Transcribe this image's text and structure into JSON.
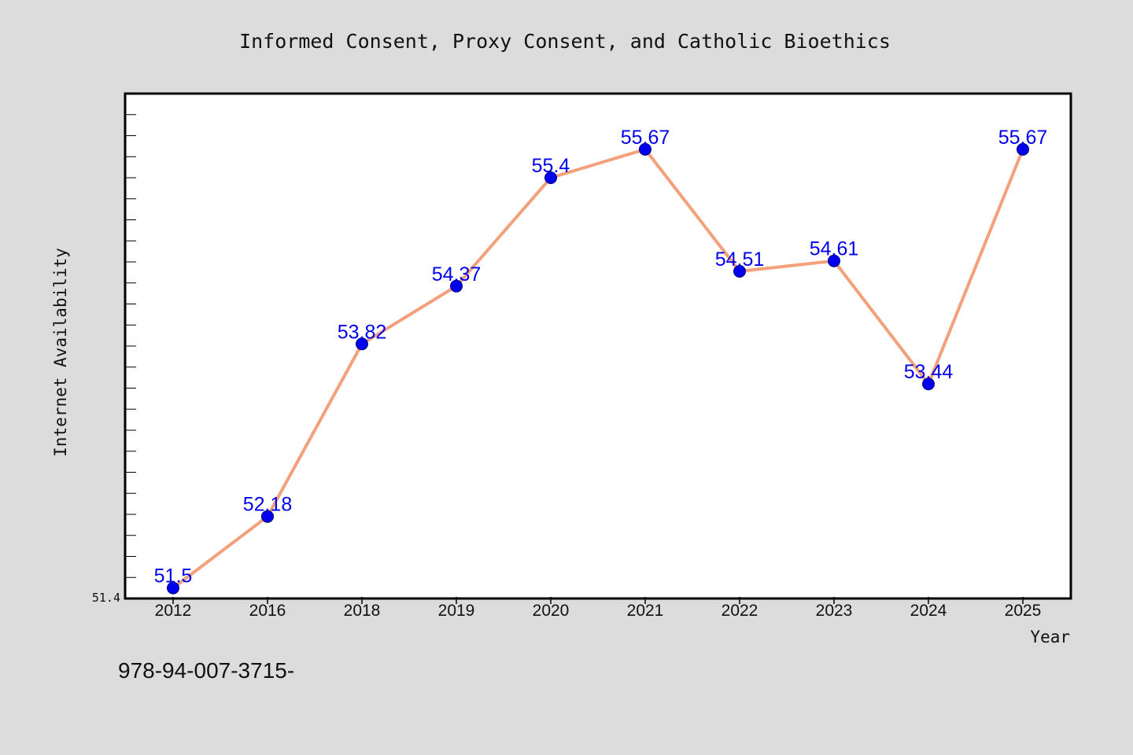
{
  "chart_data": {
    "type": "line",
    "title": "Informed Consent, Proxy Consent, and Catholic Bioethics",
    "xlabel": "Year",
    "ylabel": "Internet Availability",
    "categories": [
      "2012",
      "2016",
      "2018",
      "2019",
      "2020",
      "2021",
      "2022",
      "2023",
      "2024",
      "2025"
    ],
    "values": [
      51.5,
      52.18,
      53.82,
      54.37,
      55.4,
      55.67,
      54.51,
      54.61,
      53.44,
      55.67
    ],
    "data_labels": [
      "51.5",
      "52.18",
      "53.82",
      "54.37",
      "55.4",
      "55.67",
      "54.51",
      "54.61",
      "53.44",
      "55.67"
    ],
    "ylim": [
      51.4,
      56.2
    ],
    "y_tick_label": "51.4",
    "grid": false,
    "line_color": "#f4a07a",
    "marker_color": "#0000ee",
    "plot_background": "#ffffff",
    "figure_background": "#dcdcdc"
  },
  "footer_text": "978-94-007-3715-"
}
